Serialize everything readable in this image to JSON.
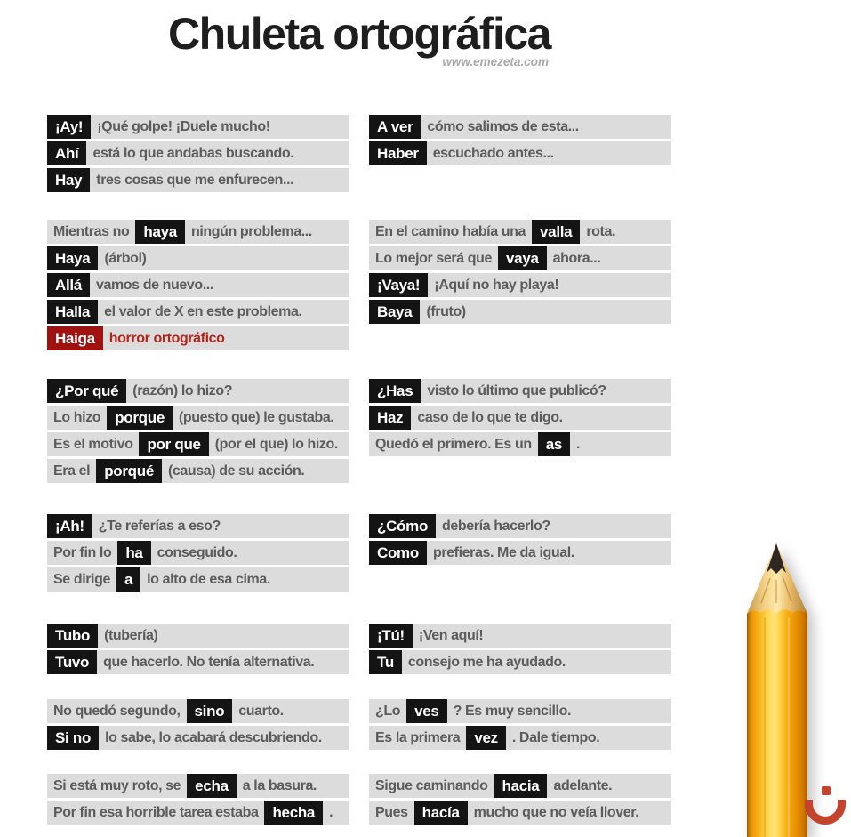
{
  "title": "Chuleta ortográfica",
  "credit": "www.emezeta.com",
  "colors": {
    "highlight_bg": "#141414",
    "highlight_text": "#ffffff",
    "row_bg": "#dcdcdc",
    "body_text": "#5c5c5c",
    "error_bg": "#9f1210",
    "error_text": "#b3261c",
    "pencil_orange": "#f7ae14",
    "logo_red": "#c4432e"
  },
  "icons": {
    "pencil": "pencil-illustration",
    "logo": "emezeta-noon-mark"
  },
  "bands": [
    {
      "left": [
        [
          {
            "kind": "chip",
            "text": "¡Ay!"
          },
          {
            "kind": "text",
            "text": "¡Qué golpe! ¡Duele mucho!"
          }
        ],
        [
          {
            "kind": "chip",
            "text": "Ahí"
          },
          {
            "kind": "text",
            "text": "está lo que andabas buscando."
          }
        ],
        [
          {
            "kind": "chip",
            "text": "Hay"
          },
          {
            "kind": "text",
            "text": "tres cosas que me enfurecen..."
          }
        ]
      ],
      "right": [
        [
          {
            "kind": "chip",
            "text": "A ver"
          },
          {
            "kind": "text",
            "text": "cómo salimos de esta..."
          }
        ],
        [
          {
            "kind": "chip",
            "text": "Haber"
          },
          {
            "kind": "text",
            "text": "escuchado antes..."
          }
        ]
      ]
    },
    {
      "left": [
        [
          {
            "kind": "text",
            "text": "Mientras no"
          },
          {
            "kind": "chip",
            "text": "haya"
          },
          {
            "kind": "text",
            "text": "ningún problema..."
          }
        ],
        [
          {
            "kind": "chip",
            "text": "Haya"
          },
          {
            "kind": "text",
            "text": "(árbol)"
          }
        ],
        [
          {
            "kind": "chip",
            "text": "Allá"
          },
          {
            "kind": "text",
            "text": "vamos de nuevo..."
          }
        ],
        [
          {
            "kind": "chip",
            "text": "Halla"
          },
          {
            "kind": "text",
            "text": "el valor de X en este problema."
          }
        ],
        [
          {
            "kind": "chip-error",
            "text": "Haiga"
          },
          {
            "kind": "text-error",
            "text": "horror ortográfico"
          }
        ]
      ],
      "right": [
        [
          {
            "kind": "text",
            "text": "En el camino había una"
          },
          {
            "kind": "chip",
            "text": "valla"
          },
          {
            "kind": "text",
            "text": "rota."
          }
        ],
        [
          {
            "kind": "text",
            "text": "Lo mejor será que"
          },
          {
            "kind": "chip",
            "text": "vaya"
          },
          {
            "kind": "text",
            "text": "ahora..."
          }
        ],
        [
          {
            "kind": "chip",
            "text": "¡Vaya!"
          },
          {
            "kind": "text",
            "text": "¡Aquí no hay playa!"
          }
        ],
        [
          {
            "kind": "chip",
            "text": "Baya"
          },
          {
            "kind": "text",
            "text": "(fruto)"
          }
        ]
      ]
    },
    {
      "left": [
        [
          {
            "kind": "chip",
            "text": "¿Por qué"
          },
          {
            "kind": "text",
            "text": "(razón) lo hizo?"
          }
        ],
        [
          {
            "kind": "text",
            "text": "Lo hizo"
          },
          {
            "kind": "chip",
            "text": "porque"
          },
          {
            "kind": "text",
            "text": "(puesto que) le gustaba."
          }
        ],
        [
          {
            "kind": "text",
            "text": "Es el motivo"
          },
          {
            "kind": "chip",
            "text": "por que"
          },
          {
            "kind": "text",
            "text": "(por el que) lo hizo."
          }
        ],
        [
          {
            "kind": "text",
            "text": "Era el"
          },
          {
            "kind": "chip",
            "text": "porqué"
          },
          {
            "kind": "text",
            "text": "(causa) de su acción."
          }
        ]
      ],
      "right": [
        [
          {
            "kind": "chip",
            "text": "¿Has"
          },
          {
            "kind": "text",
            "text": "visto lo último que publicó?"
          }
        ],
        [
          {
            "kind": "chip",
            "text": "Haz"
          },
          {
            "kind": "text",
            "text": "caso de lo que te digo."
          }
        ],
        [
          {
            "kind": "text",
            "text": "Quedó el primero. Es un"
          },
          {
            "kind": "chip",
            "text": "as"
          },
          {
            "kind": "text",
            "text": "."
          }
        ]
      ]
    },
    {
      "left": [
        [
          {
            "kind": "chip",
            "text": "¡Ah!"
          },
          {
            "kind": "text",
            "text": "¿Te referías a eso?"
          }
        ],
        [
          {
            "kind": "text",
            "text": "Por fin lo"
          },
          {
            "kind": "chip",
            "text": "ha"
          },
          {
            "kind": "text",
            "text": "conseguido."
          }
        ],
        [
          {
            "kind": "text",
            "text": "Se dirige"
          },
          {
            "kind": "chip",
            "text": "a"
          },
          {
            "kind": "text",
            "text": "lo alto de esa cima."
          }
        ]
      ],
      "right": [
        [
          {
            "kind": "chip",
            "text": "¿Cómo"
          },
          {
            "kind": "text",
            "text": "debería hacerlo?"
          }
        ],
        [
          {
            "kind": "chip",
            "text": "Como"
          },
          {
            "kind": "text",
            "text": "prefieras. Me da igual."
          }
        ]
      ]
    },
    {
      "left": [
        [
          {
            "kind": "chip",
            "text": "Tubo"
          },
          {
            "kind": "text",
            "text": "(tubería)"
          }
        ],
        [
          {
            "kind": "chip",
            "text": "Tuvo"
          },
          {
            "kind": "text",
            "text": "que hacerlo. No tenía alternativa."
          }
        ]
      ],
      "right": [
        [
          {
            "kind": "chip",
            "text": "¡Tú!"
          },
          {
            "kind": "text",
            "text": "¡Ven aquí!"
          }
        ],
        [
          {
            "kind": "chip",
            "text": "Tu"
          },
          {
            "kind": "text",
            "text": "consejo me ha ayudado."
          }
        ]
      ]
    },
    {
      "left": [
        [
          {
            "kind": "text",
            "text": "No quedó segundo,"
          },
          {
            "kind": "chip",
            "text": "sino"
          },
          {
            "kind": "text",
            "text": "cuarto."
          }
        ],
        [
          {
            "kind": "chip",
            "text": "Si no"
          },
          {
            "kind": "text",
            "text": "lo sabe, lo acabará descubriendo."
          }
        ]
      ],
      "right": [
        [
          {
            "kind": "text",
            "text": "¿Lo"
          },
          {
            "kind": "chip",
            "text": "ves"
          },
          {
            "kind": "text",
            "text": "? Es muy sencillo."
          }
        ],
        [
          {
            "kind": "text",
            "text": "Es la primera"
          },
          {
            "kind": "chip",
            "text": "vez"
          },
          {
            "kind": "text",
            "text": ". Dale tiempo."
          }
        ]
      ]
    },
    {
      "left": [
        [
          {
            "kind": "text",
            "text": "Si está muy roto, se"
          },
          {
            "kind": "chip",
            "text": "echa"
          },
          {
            "kind": "text",
            "text": "a la basura."
          }
        ],
        [
          {
            "kind": "text",
            "text": "Por fin esa horrible tarea estaba"
          },
          {
            "kind": "chip",
            "text": "hecha"
          },
          {
            "kind": "text",
            "text": "."
          }
        ]
      ],
      "right": [
        [
          {
            "kind": "text",
            "text": "Sigue caminando"
          },
          {
            "kind": "chip",
            "text": "hacia"
          },
          {
            "kind": "text",
            "text": "adelante."
          }
        ],
        [
          {
            "kind": "text",
            "text": "Pues"
          },
          {
            "kind": "chip",
            "text": "hacía"
          },
          {
            "kind": "text",
            "text": "mucho que no veía llover."
          }
        ]
      ]
    }
  ]
}
